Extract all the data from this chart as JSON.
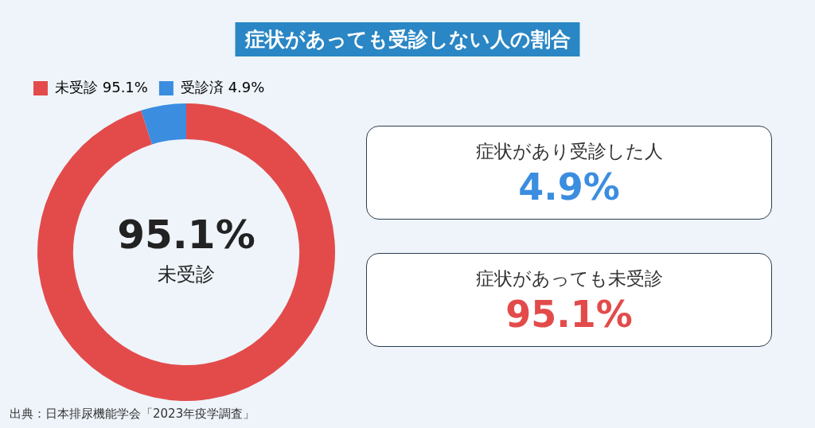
{
  "chart_data": {
    "type": "donut",
    "title": "症状があっても受診しない人の割合",
    "categories": [
      "未受診 95.1%",
      "受診済 4.9%"
    ],
    "values": [
      95.1,
      4.9
    ],
    "colors": [
      "#e34b4b",
      "#3b8de0"
    ],
    "legend": "top left",
    "annotations": [
      "95.1%",
      "未受診",
      "症状があり受診した人",
      "4.9%",
      "症状があっても未受診",
      "95.1%",
      "出典：日本排尿機能学会「2023年疫学調査」"
    ]
  }
}
